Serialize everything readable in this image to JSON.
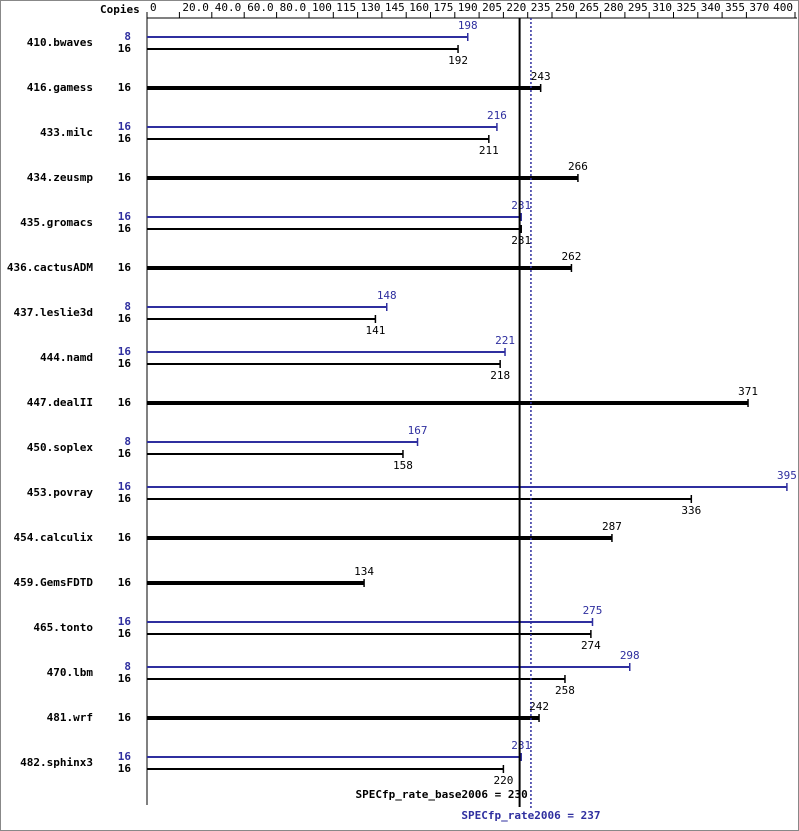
{
  "chart_data": {
    "type": "spec-bar",
    "copies_label": "Copies",
    "categories": [
      "410.bwaves",
      "416.gamess",
      "433.milc",
      "434.zeusmp",
      "435.gromacs",
      "436.cactusADM",
      "437.leslie3d",
      "444.namd",
      "447.dealII",
      "450.soplex",
      "453.povray",
      "454.calculix",
      "459.GemsFDTD",
      "465.tonto",
      "470.lbm",
      "481.wrf",
      "482.sphinx3"
    ],
    "series": [
      {
        "color": "#2f2f9f",
        "copies": [
          8,
          null,
          16,
          null,
          16,
          null,
          8,
          16,
          null,
          8,
          16,
          null,
          null,
          16,
          8,
          null,
          16
        ],
        "values": [
          198,
          null,
          216,
          null,
          231,
          null,
          148,
          221,
          null,
          167,
          395,
          null,
          null,
          275,
          298,
          null,
          231
        ]
      },
      {
        "color": "#000000",
        "copies": [
          16,
          16,
          16,
          16,
          16,
          16,
          16,
          16,
          16,
          16,
          16,
          16,
          16,
          16,
          16,
          16,
          16
        ],
        "values": [
          192,
          243,
          211,
          266,
          231,
          262,
          141,
          218,
          371,
          158,
          336,
          287,
          134,
          274,
          258,
          242,
          220
        ]
      }
    ],
    "xlim": [
      0,
      400
    ],
    "xticks": [
      0,
      {
        "value": 20,
        "label": "20.0"
      },
      {
        "value": 40,
        "label": "40.0"
      },
      {
        "value": 60,
        "label": "60.0"
      },
      {
        "value": 80,
        "label": "80.0"
      },
      100,
      115,
      130,
      145,
      160,
      175,
      190,
      205,
      220,
      235,
      250,
      265,
      280,
      295,
      310,
      325,
      340,
      355,
      370,
      400
    ],
    "reference_lines": [
      {
        "label": "SPECfp_rate_base2006 = 230",
        "value": 230,
        "color": "#000000",
        "style": "solid"
      },
      {
        "label": "SPECfp_rate2006 = 237",
        "value": 237,
        "color": "#2f2f9f",
        "style": "dotted"
      }
    ]
  }
}
